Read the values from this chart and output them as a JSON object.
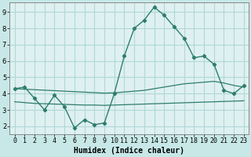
{
  "title": "",
  "xlabel": "Humidex (Indice chaleur)",
  "x": [
    0,
    1,
    2,
    3,
    4,
    5,
    6,
    7,
    8,
    9,
    10,
    11,
    12,
    13,
    14,
    15,
    16,
    17,
    18,
    19,
    20,
    21,
    22,
    23
  ],
  "y_curve": [
    4.3,
    4.4,
    3.7,
    3.0,
    3.9,
    3.2,
    1.9,
    2.4,
    2.1,
    2.2,
    4.0,
    6.3,
    8.0,
    8.5,
    9.3,
    8.8,
    8.1,
    7.4,
    6.2,
    6.3,
    5.8,
    4.2,
    4.0,
    4.5
  ],
  "y_line": [
    4.3,
    4.27,
    4.24,
    4.21,
    4.18,
    4.15,
    4.12,
    4.09,
    4.06,
    4.03,
    4.05,
    4.1,
    4.15,
    4.2,
    4.3,
    4.4,
    4.5,
    4.6,
    4.65,
    4.7,
    4.75,
    4.65,
    4.5,
    4.4
  ],
  "y_flat": [
    3.5,
    3.45,
    3.4,
    3.38,
    3.36,
    3.34,
    3.32,
    3.3,
    3.3,
    3.28,
    3.3,
    3.32,
    3.34,
    3.36,
    3.38,
    3.4,
    3.42,
    3.44,
    3.46,
    3.48,
    3.5,
    3.52,
    3.54,
    3.56
  ],
  "line_color": "#2e7d6e",
  "bg_color": "#c8e8e8",
  "grid_color": "#b0d8d8",
  "axis_bg": "#dff0f0",
  "ylim": [
    1.5,
    9.6
  ],
  "yticks": [
    2,
    3,
    4,
    5,
    6,
    7,
    8,
    9
  ],
  "tick_fontsize": 6,
  "label_fontsize": 7
}
